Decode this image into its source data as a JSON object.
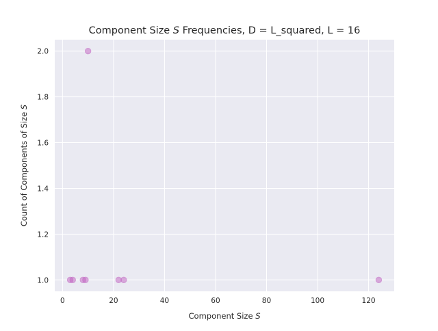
{
  "chart_data": {
    "type": "scatter",
    "title_parts": [
      "Component Size ",
      "S",
      " Frequencies, D = L_squared, L = 16"
    ],
    "xlabel_parts": [
      "Component Size ",
      "S"
    ],
    "ylabel_parts": [
      "Count of Components of Size ",
      "S"
    ],
    "xlim": [
      -3.05,
      130.05
    ],
    "ylim": [
      0.95,
      2.05
    ],
    "x_ticks": [
      0,
      20,
      40,
      60,
      80,
      100,
      120
    ],
    "y_ticks": [
      1.0,
      1.2,
      1.4,
      1.6,
      1.8,
      2.0
    ],
    "x_tick_labels": [
      "0",
      "20",
      "40",
      "60",
      "80",
      "100",
      "120"
    ],
    "y_tick_labels": [
      "1.0",
      "1.2",
      "1.4",
      "1.6",
      "1.8",
      "2.0"
    ],
    "grid": true,
    "marker_color": "#bf5fbf",
    "marker_alpha": 0.5,
    "background_color": "#eaeaf2",
    "grid_color": "#ffffff",
    "points": [
      {
        "x": 3,
        "y": 1
      },
      {
        "x": 4,
        "y": 1
      },
      {
        "x": 8,
        "y": 1
      },
      {
        "x": 9,
        "y": 1
      },
      {
        "x": 10,
        "y": 2
      },
      {
        "x": 22,
        "y": 1
      },
      {
        "x": 24,
        "y": 1
      },
      {
        "x": 124,
        "y": 1
      }
    ]
  }
}
